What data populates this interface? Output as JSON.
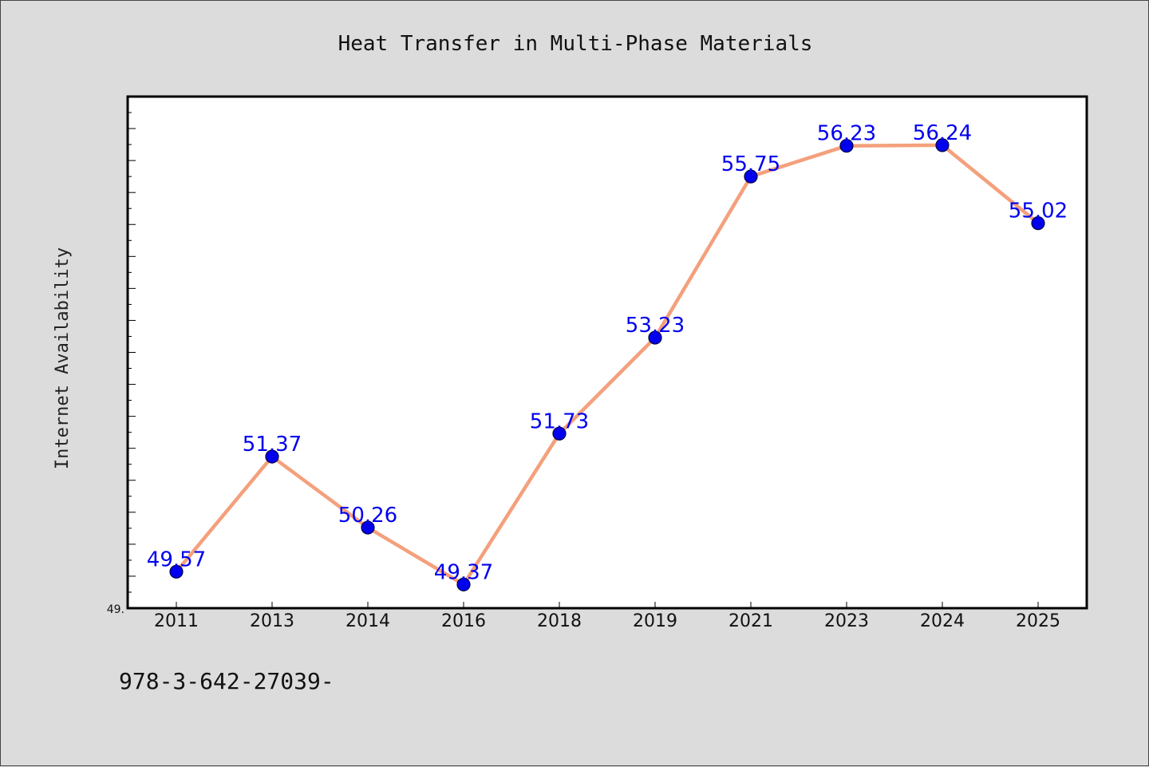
{
  "chart_data": {
    "type": "line",
    "title": "Heat Transfer in Multi-Phase Materials",
    "xlabel": "",
    "ylabel": "Internet Availability",
    "categories": [
      "2011",
      "2013",
      "2014",
      "2016",
      "2018",
      "2019",
      "2021",
      "2023",
      "2024",
      "2025"
    ],
    "series": [
      {
        "values": [
          49.57,
          51.37,
          50.26,
          49.37,
          51.73,
          53.23,
          55.75,
          56.23,
          56.24,
          55.02
        ]
      }
    ],
    "data_labels": [
      "49.57",
      "51.37",
      "50.26",
      "49.37",
      "51.73",
      "53.23",
      "55.75",
      "56.23",
      "56.24",
      "55.02"
    ],
    "ylim": [
      49.0,
      57.0
    ],
    "y_tick_labels_shown": [
      "49."
    ],
    "grid": false,
    "legend": "none",
    "colors": {
      "line": "#f4a07c",
      "marker": "#0000ee",
      "marker_edge": "#000044",
      "data_label": "#0000ee",
      "plot_background": "#ffffff",
      "figure_background": "#dcdcdc"
    }
  },
  "footer": {
    "text": "978-3-642-27039-"
  }
}
